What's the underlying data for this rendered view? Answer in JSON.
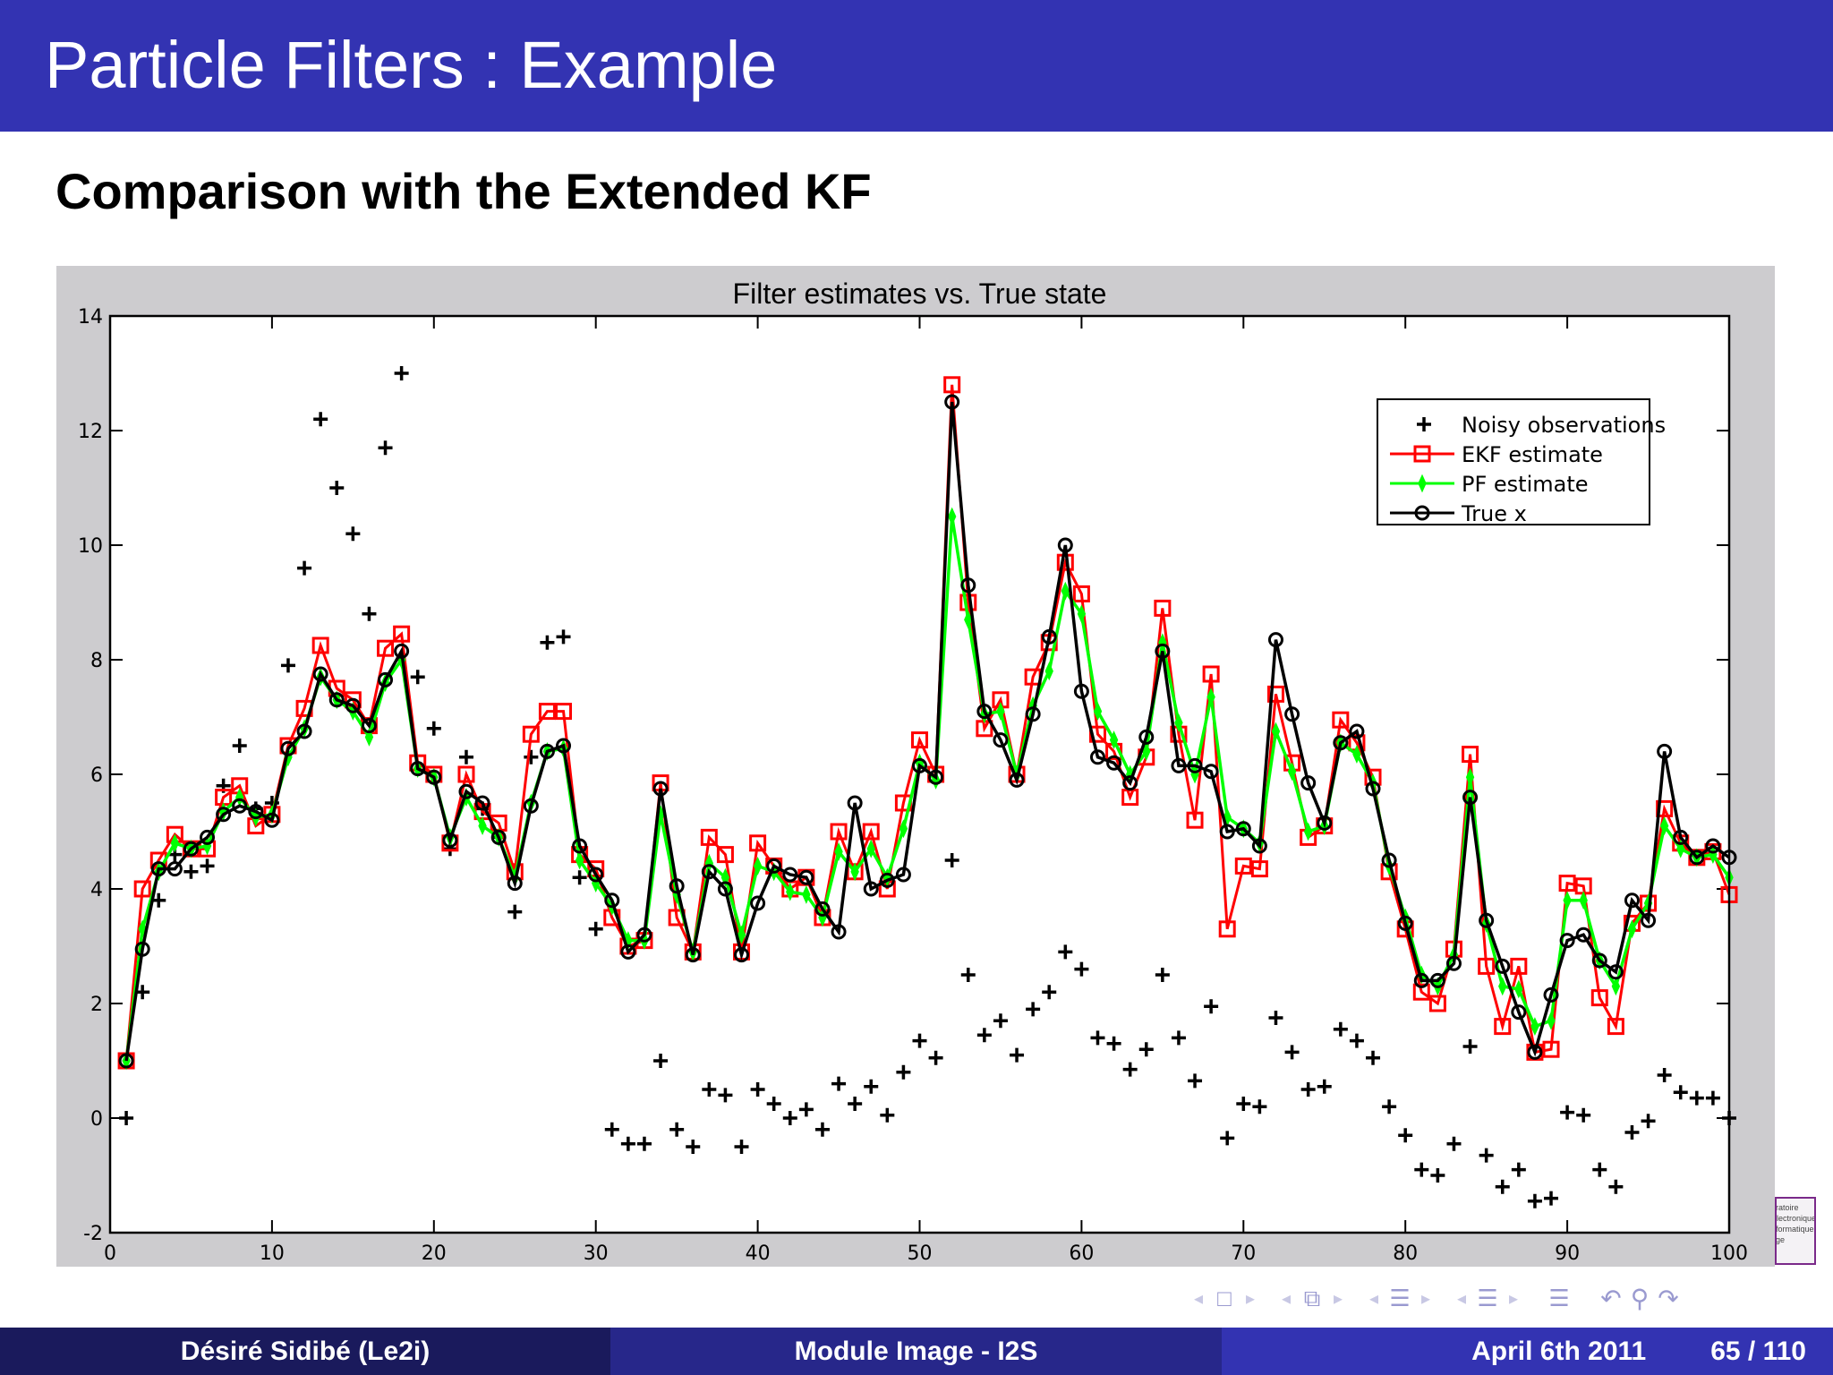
{
  "header": {
    "title": "Particle Filters : Example"
  },
  "subtitle": "Comparison with the Extended KF",
  "footer": {
    "author": "Désiré Sidibé  (Le2i)",
    "course": "Module Image - I2S",
    "date": "April 6th 2011",
    "page": "65 / 110"
  },
  "logo": {
    "lines": [
      "oratoire",
      "Électronique",
      "nformatique",
      "age"
    ]
  },
  "nav": {
    "icons": [
      "frame-nav",
      "subsection-nav",
      "section-nav",
      "doc-nav",
      "toc",
      "back-search-forward"
    ],
    "glyphs": {
      "frame": "□",
      "subsection": "⧉",
      "section": "☰",
      "doc": "☰",
      "toc": "☰",
      "undo": "↶",
      "search": "⚲",
      "redo": "↷",
      "left": "◂",
      "right": "▸"
    }
  },
  "colors": {
    "header_bg": "#3333b2",
    "footer_left": "#1a1a5c",
    "footer_mid": "#27278a",
    "footer_right": "#3333b2",
    "figure_bg": "#cdcccf",
    "ekf": "#ff0000",
    "pf": "#00ff00",
    "true": "#000000",
    "obs": "#000000"
  },
  "chart_data": {
    "type": "line",
    "title": "Filter estimates vs. True state",
    "xlabel": "",
    "ylabel": "",
    "xlim": [
      0,
      100
    ],
    "ylim": [
      -2,
      14
    ],
    "xticks": [
      0,
      10,
      20,
      30,
      40,
      50,
      60,
      70,
      80,
      90,
      100
    ],
    "yticks": [
      -2,
      0,
      2,
      4,
      6,
      8,
      10,
      12,
      14
    ],
    "grid": false,
    "legend_position": "upper right",
    "legend": [
      "Noisy observations",
      "EKF estimate",
      "PF estimate",
      "True x"
    ],
    "x": [
      1,
      2,
      3,
      4,
      5,
      6,
      7,
      8,
      9,
      10,
      11,
      12,
      13,
      14,
      15,
      16,
      17,
      18,
      19,
      20,
      21,
      22,
      23,
      24,
      25,
      26,
      27,
      28,
      29,
      30,
      31,
      32,
      33,
      34,
      35,
      36,
      37,
      38,
      39,
      40,
      41,
      42,
      43,
      44,
      45,
      46,
      47,
      48,
      49,
      50,
      51,
      52,
      53,
      54,
      55,
      56,
      57,
      58,
      59,
      60,
      61,
      62,
      63,
      64,
      65,
      66,
      67,
      68,
      69,
      70,
      71,
      72,
      73,
      74,
      75,
      76,
      77,
      78,
      79,
      80,
      81,
      82,
      83,
      84,
      85,
      86,
      87,
      88,
      89,
      90,
      91,
      92,
      93,
      94,
      95,
      96,
      97,
      98,
      99,
      100
    ],
    "series": [
      {
        "name": "Noisy observations",
        "marker": "+",
        "line": false,
        "values": [
          0.0,
          2.2,
          3.8,
          4.6,
          4.3,
          4.4,
          5.8,
          6.5,
          5.4,
          5.5,
          7.9,
          9.6,
          12.2,
          11.0,
          10.2,
          8.8,
          11.7,
          13.0,
          7.7,
          6.8,
          4.7,
          6.3,
          5.4,
          4.9,
          3.6,
          6.3,
          8.3,
          8.4,
          4.2,
          3.3,
          -0.2,
          -0.45,
          -0.45,
          1.0,
          -0.2,
          -0.5,
          0.5,
          0.4,
          -0.5,
          0.5,
          0.25,
          0.0,
          0.15,
          -0.2,
          0.6,
          0.25,
          0.55,
          0.05,
          0.8,
          1.35,
          1.05,
          4.5,
          2.5,
          1.45,
          1.7,
          1.1,
          1.9,
          2.2,
          2.9,
          2.6,
          1.4,
          1.3,
          0.85,
          1.2,
          2.5,
          1.4,
          0.65,
          1.95,
          -0.35,
          0.25,
          0.2,
          1.75,
          1.15,
          0.5,
          0.55,
          1.55,
          1.35,
          1.05,
          0.2,
          -0.3,
          -0.9,
          -1.0,
          -0.45,
          1.25,
          -0.65,
          -1.2,
          -0.9,
          -1.45,
          -1.4,
          0.1,
          0.05,
          -0.9,
          -1.2,
          -0.25,
          -0.05,
          0.75,
          0.45,
          0.35,
          0.35,
          0.0
        ]
      },
      {
        "name": "EKF estimate",
        "marker": "square",
        "line": true,
        "values": [
          1.0,
          4.0,
          4.5,
          4.95,
          4.7,
          4.7,
          5.6,
          5.8,
          5.1,
          5.3,
          6.5,
          7.15,
          8.25,
          7.5,
          7.3,
          6.85,
          8.2,
          8.45,
          6.2,
          6.0,
          4.8,
          6.0,
          5.35,
          5.15,
          4.3,
          6.7,
          7.1,
          7.1,
          4.6,
          4.35,
          3.5,
          3.0,
          3.1,
          5.85,
          3.5,
          2.9,
          4.9,
          4.6,
          2.9,
          4.8,
          4.4,
          4.0,
          4.2,
          3.5,
          5.0,
          4.3,
          5.0,
          4.0,
          5.5,
          6.6,
          6.0,
          12.8,
          9.0,
          6.8,
          7.3,
          6.0,
          7.7,
          8.3,
          9.7,
          9.15,
          6.7,
          6.4,
          5.6,
          6.3,
          8.9,
          6.7,
          5.2,
          7.75,
          3.3,
          4.4,
          4.35,
          7.4,
          6.2,
          4.9,
          5.1,
          6.95,
          6.55,
          5.95,
          4.3,
          3.3,
          2.2,
          2.0,
          2.95,
          6.35,
          2.65,
          1.6,
          2.65,
          1.15,
          1.2,
          4.1,
          4.05,
          2.1,
          1.6,
          3.4,
          3.75,
          5.4,
          4.8,
          4.55,
          4.65,
          3.9
        ]
      },
      {
        "name": "PF estimate",
        "marker": "star",
        "line": true,
        "values": [
          1.0,
          3.3,
          4.3,
          4.8,
          4.7,
          4.75,
          5.35,
          5.6,
          5.25,
          5.3,
          6.3,
          6.8,
          7.7,
          7.3,
          7.1,
          6.65,
          7.6,
          8.0,
          6.1,
          5.95,
          4.9,
          5.6,
          5.1,
          4.9,
          4.2,
          5.5,
          6.4,
          6.45,
          4.5,
          4.1,
          3.7,
          3.1,
          3.1,
          5.3,
          3.9,
          2.9,
          4.45,
          4.2,
          3.2,
          4.4,
          4.3,
          3.95,
          3.9,
          3.5,
          4.65,
          4.3,
          4.7,
          4.2,
          5.05,
          6.2,
          5.9,
          10.5,
          8.7,
          7.05,
          7.1,
          6.0,
          7.2,
          7.8,
          9.2,
          8.8,
          7.1,
          6.6,
          6.0,
          6.4,
          8.3,
          6.9,
          6.0,
          7.35,
          5.25,
          5.05,
          4.8,
          6.75,
          6.05,
          5.0,
          5.1,
          6.55,
          6.35,
          5.85,
          4.4,
          3.5,
          2.5,
          2.3,
          2.85,
          5.95,
          3.4,
          2.3,
          2.25,
          1.6,
          1.7,
          3.8,
          3.8,
          2.75,
          2.3,
          3.3,
          3.75,
          5.1,
          4.7,
          4.55,
          4.6,
          4.2
        ]
      },
      {
        "name": "True x",
        "marker": "circle",
        "line": true,
        "values": [
          1.0,
          2.95,
          4.35,
          4.35,
          4.7,
          4.9,
          5.3,
          5.45,
          5.35,
          5.2,
          6.45,
          6.75,
          7.75,
          7.3,
          7.2,
          6.85,
          7.65,
          8.15,
          6.1,
          5.95,
          4.85,
          5.7,
          5.5,
          4.9,
          4.1,
          5.45,
          6.4,
          6.5,
          4.75,
          4.25,
          3.8,
          2.9,
          3.2,
          5.75,
          4.05,
          2.85,
          4.3,
          4.0,
          2.85,
          3.75,
          4.4,
          4.25,
          4.2,
          3.65,
          3.25,
          5.5,
          4.0,
          4.15,
          4.25,
          6.15,
          5.95,
          12.5,
          9.3,
          7.1,
          6.6,
          5.9,
          7.05,
          8.4,
          10.0,
          7.45,
          6.3,
          6.2,
          5.85,
          6.65,
          8.15,
          6.15,
          6.15,
          6.05,
          5.0,
          5.05,
          4.75,
          8.35,
          7.05,
          5.85,
          5.15,
          6.55,
          6.75,
          5.75,
          4.5,
          3.4,
          2.4,
          2.4,
          2.7,
          5.6,
          3.45,
          2.65,
          1.85,
          1.15,
          2.15,
          3.1,
          3.2,
          2.75,
          2.55,
          3.8,
          3.45,
          6.4,
          4.9,
          4.55,
          4.75,
          4.55
        ]
      }
    ]
  }
}
